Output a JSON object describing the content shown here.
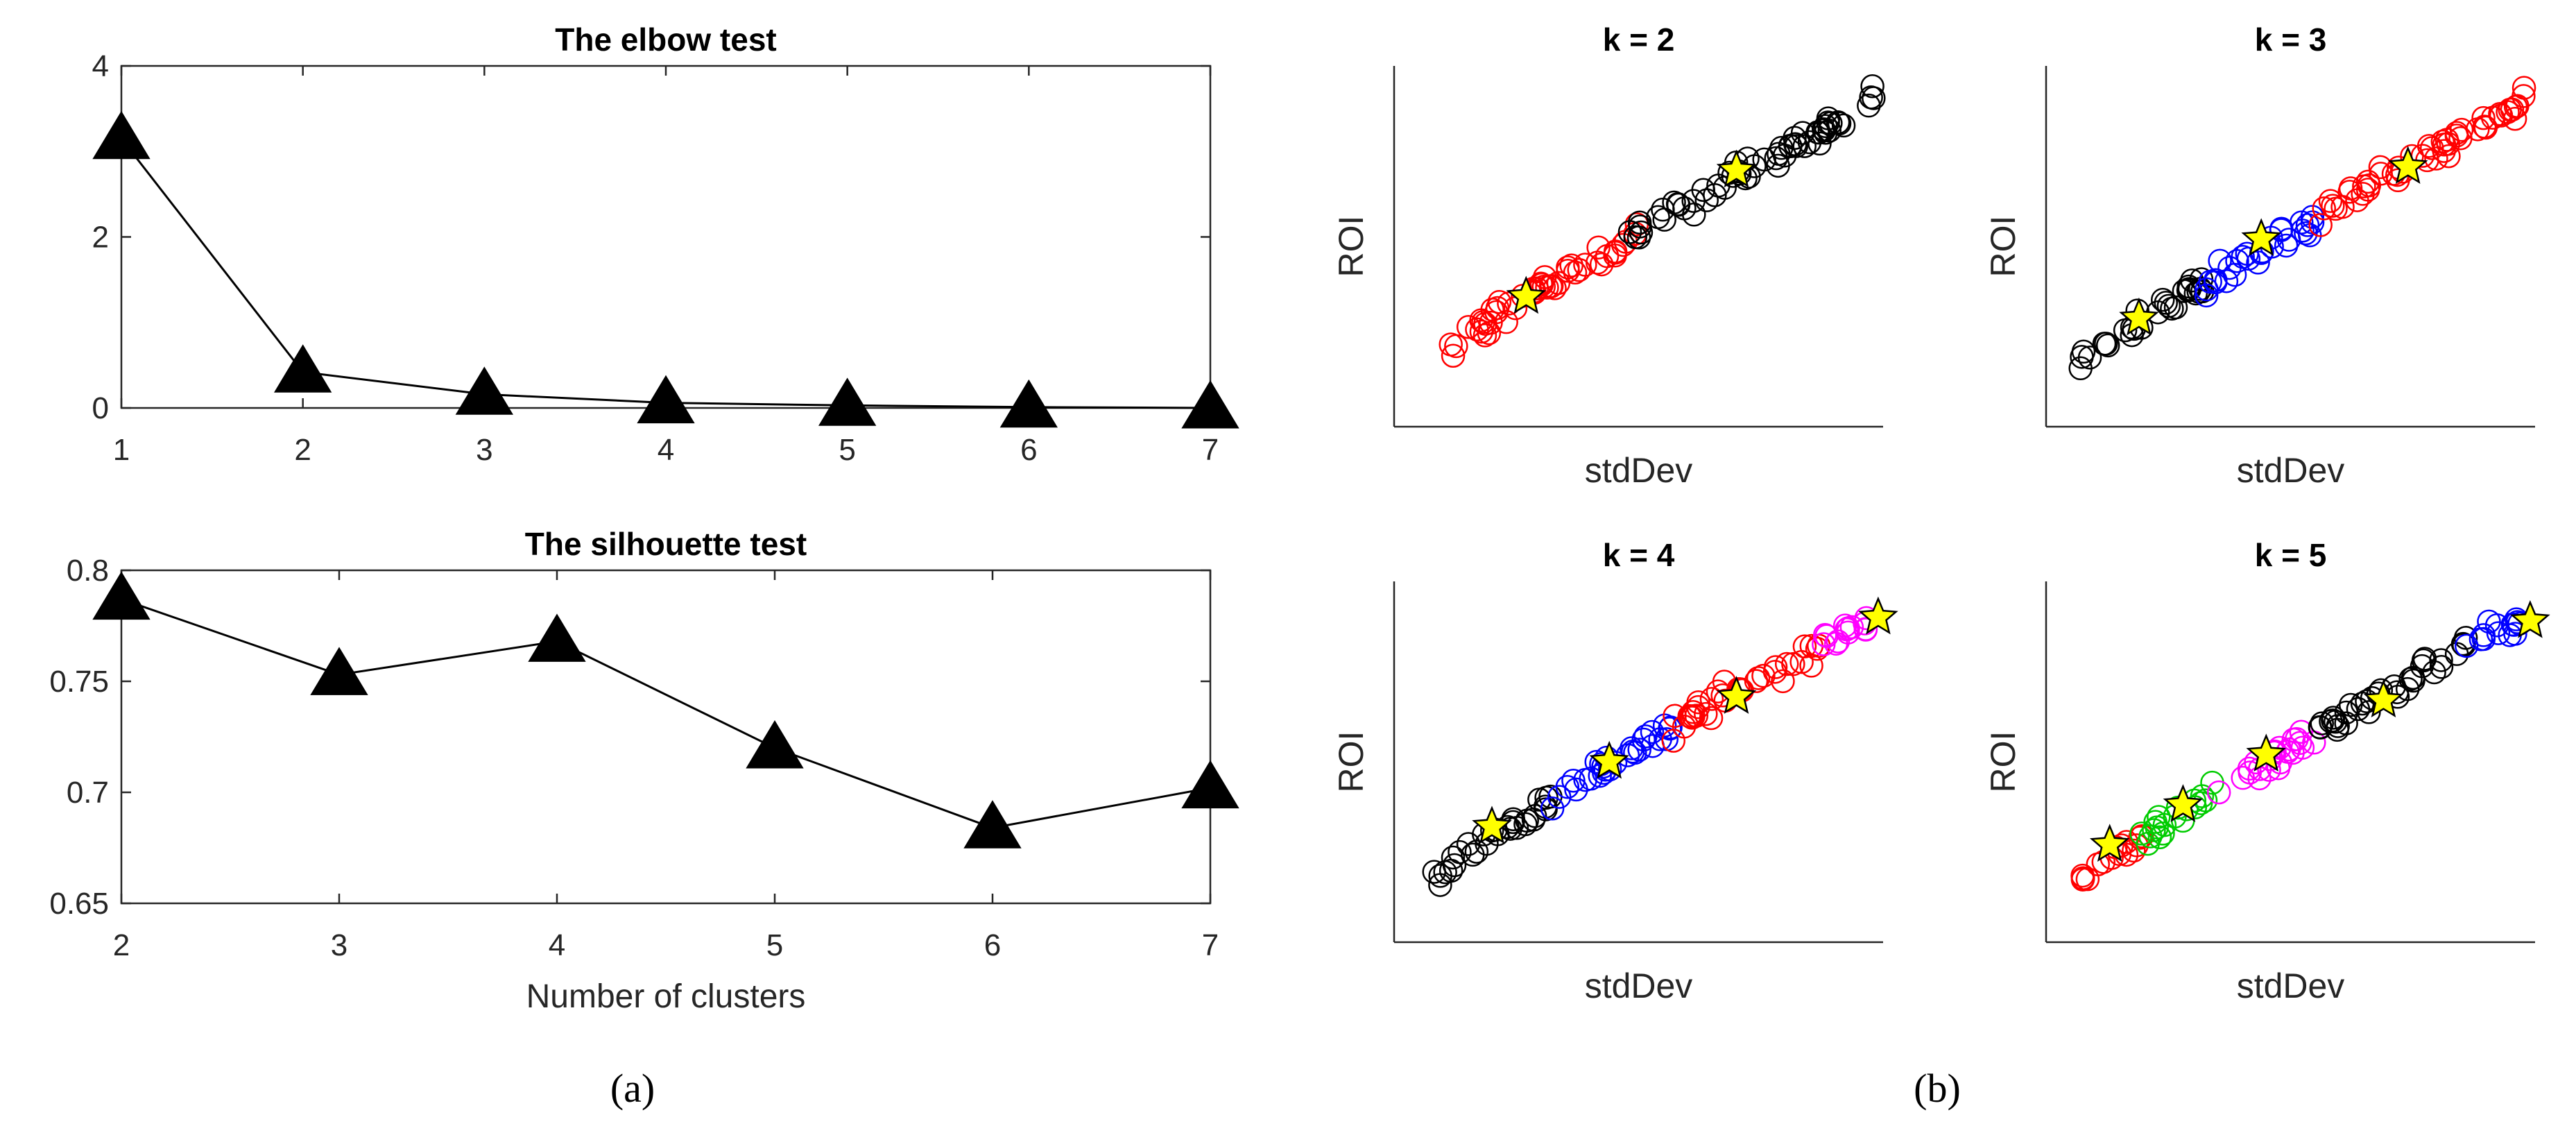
{
  "panel_labels": {
    "a": "(a)",
    "b": "(b)"
  },
  "chart_data": [
    {
      "id": "elbow",
      "type": "line",
      "title": "The elbow test",
      "xlabel": "",
      "ylabel": "",
      "marker": "triangle",
      "x": [
        1,
        2,
        3,
        4,
        5,
        6,
        7
      ],
      "y": [
        3.15,
        0.42,
        0.16,
        0.06,
        0.03,
        0.01,
        0.0
      ],
      "xlim": [
        1,
        7
      ],
      "ylim": [
        0,
        4
      ],
      "xticks": [
        1,
        2,
        3,
        4,
        5,
        6,
        7
      ],
      "yticks": [
        0,
        2,
        4
      ],
      "grid": false
    },
    {
      "id": "silhouette",
      "type": "line",
      "title": "The silhouette test",
      "xlabel": "Number of clusters",
      "ylabel": "",
      "marker": "triangle",
      "x": [
        2,
        3,
        4,
        5,
        6,
        7
      ],
      "y": [
        0.787,
        0.753,
        0.768,
        0.72,
        0.684,
        0.702
      ],
      "xlim": [
        2,
        7
      ],
      "ylim": [
        0.65,
        0.8
      ],
      "xticks": [
        2,
        3,
        4,
        5,
        6,
        7
      ],
      "yticks": [
        "0.65",
        "0.7",
        "0.75",
        "0.8"
      ],
      "grid": false
    },
    {
      "id": "k2",
      "type": "scatter",
      "title": "k = 2",
      "xlabel": "stdDev",
      "ylabel": "ROI",
      "xlim": [
        0,
        1
      ],
      "ylim": [
        0,
        1
      ],
      "clusters": [
        {
          "color": "#ff0000",
          "x_range": [
            0.08,
            0.5
          ],
          "centroid": [
            0.27,
            0.36
          ]
        },
        {
          "color": "#000000",
          "x_range": [
            0.48,
            0.99
          ],
          "centroid": [
            0.7,
            0.71
          ]
        }
      ]
    },
    {
      "id": "k3",
      "type": "scatter",
      "title": "k = 3",
      "xlabel": "stdDev",
      "ylabel": "ROI",
      "xlim": [
        0,
        1
      ],
      "ylim": [
        0,
        1
      ],
      "clusters": [
        {
          "color": "#000000",
          "x_range": [
            0.07,
            0.32
          ],
          "centroid": [
            0.19,
            0.3
          ]
        },
        {
          "color": "#0000ff",
          "x_range": [
            0.32,
            0.56
          ],
          "centroid": [
            0.44,
            0.52
          ]
        },
        {
          "color": "#ff0000",
          "x_range": [
            0.56,
            0.99
          ],
          "centroid": [
            0.74,
            0.72
          ]
        }
      ]
    },
    {
      "id": "k4",
      "type": "scatter",
      "title": "k = 4",
      "xlabel": "stdDev",
      "ylabel": "ROI",
      "xlim": [
        0,
        1
      ],
      "ylim": [
        0,
        1
      ],
      "clusters": [
        {
          "color": "#000000",
          "x_range": [
            0.08,
            0.33
          ],
          "centroid": [
            0.2,
            0.32
          ]
        },
        {
          "color": "#0000ff",
          "x_range": [
            0.32,
            0.57
          ],
          "centroid": [
            0.44,
            0.5
          ]
        },
        {
          "color": "#ff0000",
          "x_range": [
            0.57,
            0.87
          ],
          "centroid": [
            0.7,
            0.68
          ]
        },
        {
          "color": "#ff00ff",
          "x_range": [
            0.85,
            0.97
          ],
          "centroid": [
            0.99,
            0.9
          ]
        }
      ]
    },
    {
      "id": "k5",
      "type": "scatter",
      "title": "k = 5",
      "xlabel": "stdDev",
      "ylabel": "ROI",
      "xlim": [
        0,
        1
      ],
      "ylim": [
        0,
        1
      ],
      "clusters": [
        {
          "color": "#ff0000",
          "x_range": [
            0.07,
            0.2
          ],
          "centroid": [
            0.13,
            0.27
          ]
        },
        {
          "color": "#00cc00",
          "x_range": [
            0.18,
            0.35
          ],
          "centroid": [
            0.28,
            0.38
          ]
        },
        {
          "color": "#ff00ff",
          "x_range": [
            0.35,
            0.55
          ],
          "centroid": [
            0.45,
            0.52
          ]
        },
        {
          "color": "#000000",
          "x_range": [
            0.56,
            0.86
          ],
          "centroid": [
            0.69,
            0.67
          ]
        },
        {
          "color": "#0000ff",
          "x_range": [
            0.85,
            0.97
          ],
          "centroid": [
            0.99,
            0.89
          ]
        }
      ]
    }
  ]
}
